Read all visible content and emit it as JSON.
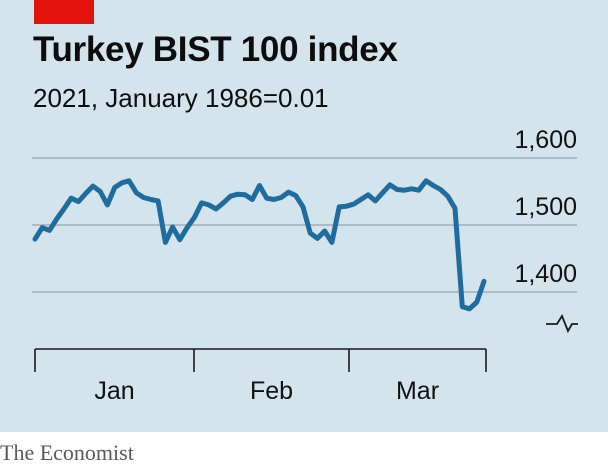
{
  "header": {
    "title": "Turkey BIST 100 index",
    "subtitle": "2021, January 1986=0.01"
  },
  "footer": {
    "source": "The Economist"
  },
  "colors": {
    "background": "#d3e4ed",
    "accent": "#e3120b",
    "line": "#1f6c9e",
    "grid": "#9aa4aa"
  },
  "chart_data": {
    "type": "line",
    "title": "Turkey BIST 100 index",
    "subtitle": "2021, January 1986=0.01",
    "xlabel": "",
    "ylabel": "",
    "ylim": [
      1350,
      1620
    ],
    "yticks": [
      1400,
      1500,
      1600
    ],
    "ytick_labels": [
      "1,400",
      "1,500",
      "1,600"
    ],
    "y_axis_broken": true,
    "grid": true,
    "month_labels": [
      "Jan",
      "Feb",
      "Mar"
    ],
    "series": [
      {
        "values": [
          1479,
          1496,
          1492,
          1509,
          1524,
          1540,
          1535,
          1547,
          1558,
          1550,
          1530,
          1556,
          1563,
          1566,
          1548,
          1541,
          1538,
          1536,
          1474,
          1497,
          1478,
          1496,
          1511,
          1533,
          1530,
          1524,
          1533,
          1543,
          1546,
          1545,
          1538,
          1559,
          1540,
          1538,
          1541,
          1549,
          1544,
          1527,
          1488,
          1480,
          1491,
          1474,
          1527,
          1528,
          1531,
          1538,
          1545,
          1536,
          1548,
          1560,
          1553,
          1552,
          1554,
          1552,
          1566,
          1559,
          1553,
          1543,
          1525,
          1378,
          1375,
          1385,
          1416
        ]
      }
    ]
  }
}
